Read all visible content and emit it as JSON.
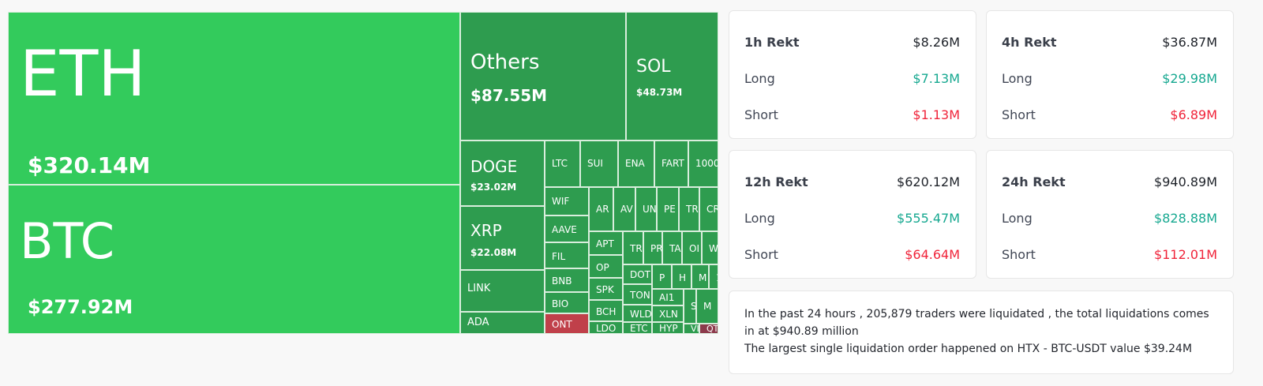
{
  "colors": {
    "major": "#33cb5c",
    "minor": "#2e9c4f",
    "loss": "#c0404a",
    "loss_dark": "#8c3a4c",
    "long": "#16a890",
    "short": "#f0243a"
  },
  "treemap": {
    "cells": [
      {
        "symbol": "ETH",
        "value": "$320.14M",
        "tone": "major"
      },
      {
        "symbol": "BTC",
        "value": "$277.92M",
        "tone": "major"
      },
      {
        "symbol": "Others",
        "value": "$87.55M",
        "tone": "minor"
      },
      {
        "symbol": "SOL",
        "value": "$48.73M",
        "tone": "minor"
      },
      {
        "symbol": "DOGE",
        "value": "$23.02M",
        "tone": "minor"
      },
      {
        "symbol": "XRP",
        "value": "$22.08M",
        "tone": "minor"
      },
      {
        "symbol": "LINK",
        "tone": "minor"
      },
      {
        "symbol": "ADA",
        "tone": "minor"
      },
      {
        "symbol": "LTC",
        "tone": "minor"
      },
      {
        "symbol": "SUI",
        "tone": "minor"
      },
      {
        "symbol": "ENA",
        "tone": "minor"
      },
      {
        "symbol": "FART",
        "tone": "minor"
      },
      {
        "symbol": "1000",
        "tone": "minor"
      },
      {
        "symbol": "WIF",
        "tone": "minor"
      },
      {
        "symbol": "AAVE",
        "tone": "minor"
      },
      {
        "symbol": "FIL",
        "tone": "minor"
      },
      {
        "symbol": "BNB",
        "tone": "minor"
      },
      {
        "symbol": "BIO",
        "tone": "minor"
      },
      {
        "symbol": "ONT",
        "tone": "loss"
      },
      {
        "symbol": "AR",
        "tone": "minor"
      },
      {
        "symbol": "AV",
        "tone": "minor"
      },
      {
        "symbol": "UN",
        "tone": "minor"
      },
      {
        "symbol": "PE",
        "tone": "minor"
      },
      {
        "symbol": "TR",
        "tone": "minor"
      },
      {
        "symbol": "CR",
        "tone": "minor"
      },
      {
        "symbol": "APT",
        "tone": "minor"
      },
      {
        "symbol": "OP",
        "tone": "minor"
      },
      {
        "symbol": "SPK",
        "tone": "minor"
      },
      {
        "symbol": "BCH",
        "tone": "minor"
      },
      {
        "symbol": "LDO",
        "tone": "minor"
      },
      {
        "symbol": "TR",
        "tone": "minor"
      },
      {
        "symbol": "PR",
        "tone": "minor"
      },
      {
        "symbol": "TA",
        "tone": "minor"
      },
      {
        "symbol": "OI",
        "tone": "minor"
      },
      {
        "symbol": "W",
        "tone": "minor"
      },
      {
        "symbol": "DOT",
        "tone": "minor"
      },
      {
        "symbol": "TON",
        "tone": "minor"
      },
      {
        "symbol": "WLD",
        "tone": "minor"
      },
      {
        "symbol": "ETC",
        "tone": "minor"
      },
      {
        "symbol": "P",
        "tone": "minor"
      },
      {
        "symbol": "H",
        "tone": "minor"
      },
      {
        "symbol": "M",
        "tone": "minor"
      },
      {
        "symbol": "1",
        "tone": "minor"
      },
      {
        "symbol": "AI1",
        "tone": "minor"
      },
      {
        "symbol": "XLN",
        "tone": "minor"
      },
      {
        "symbol": "HYP",
        "tone": "minor"
      },
      {
        "symbol": "S",
        "tone": "minor"
      },
      {
        "symbol": "M",
        "tone": "minor"
      },
      {
        "symbol": "VI",
        "tone": "minor"
      },
      {
        "symbol": "QT",
        "tone": "loss_dark"
      }
    ]
  },
  "cards": [
    {
      "title": "1h Rekt",
      "total": "$8.26M",
      "long_label": "Long",
      "long": "$7.13M",
      "short_label": "Short",
      "short": "$1.13M"
    },
    {
      "title": "4h Rekt",
      "total": "$36.87M",
      "long_label": "Long",
      "long": "$29.98M",
      "short_label": "Short",
      "short": "$6.89M"
    },
    {
      "title": "12h Rekt",
      "total": "$620.12M",
      "long_label": "Long",
      "long": "$555.47M",
      "short_label": "Short",
      "short": "$64.64M"
    },
    {
      "title": "24h Rekt",
      "total": "$940.89M",
      "long_label": "Long",
      "long": "$828.88M",
      "short_label": "Short",
      "short": "$112.01M"
    }
  ],
  "summary": {
    "line1": "In the past 24 hours , 205,879 traders were liquidated , the total liquidations comes in at $940.89 million",
    "line2": "The largest single liquidation order happened on HTX - BTC-USDT value $39.24M"
  }
}
